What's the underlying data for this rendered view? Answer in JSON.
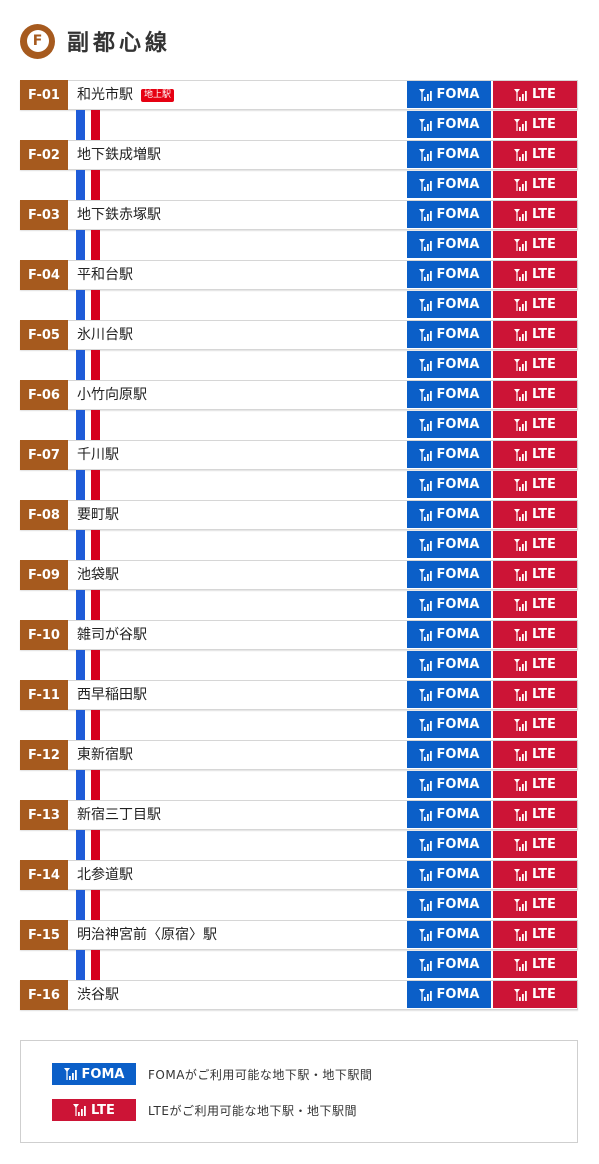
{
  "header": {
    "badge_letter": "F",
    "title": "副都心線"
  },
  "labels": {
    "foma": "FOMA",
    "lte": "LTE",
    "ground_station": "地上駅"
  },
  "colors": {
    "line": "#a65a1e",
    "foma": "#0b5fc8",
    "lte": "#cc1436",
    "stripe_blue": "#1e5bd8",
    "stripe_red": "#d5001c"
  },
  "stations": [
    {
      "code": "F-01",
      "name": "和光市駅",
      "ground": true
    },
    {
      "code": "F-02",
      "name": "地下鉄成増駅"
    },
    {
      "code": "F-03",
      "name": "地下鉄赤塚駅"
    },
    {
      "code": "F-04",
      "name": "平和台駅"
    },
    {
      "code": "F-05",
      "name": "氷川台駅"
    },
    {
      "code": "F-06",
      "name": "小竹向原駅"
    },
    {
      "code": "F-07",
      "name": "千川駅"
    },
    {
      "code": "F-08",
      "name": "要町駅"
    },
    {
      "code": "F-09",
      "name": "池袋駅"
    },
    {
      "code": "F-10",
      "name": "雑司が谷駅"
    },
    {
      "code": "F-11",
      "name": "西早稲田駅"
    },
    {
      "code": "F-12",
      "name": "東新宿駅"
    },
    {
      "code": "F-13",
      "name": "新宿三丁目駅"
    },
    {
      "code": "F-14",
      "name": "北参道駅"
    },
    {
      "code": "F-15",
      "name": "明治神宮前〈原宿〉駅"
    },
    {
      "code": "F-16",
      "name": "渋谷駅"
    }
  ],
  "legend": {
    "foma_desc": "FOMAがご利用可能な地下駅・地下駅間",
    "lte_desc": "LTEがご利用可能な地下駅・地下駅間"
  }
}
